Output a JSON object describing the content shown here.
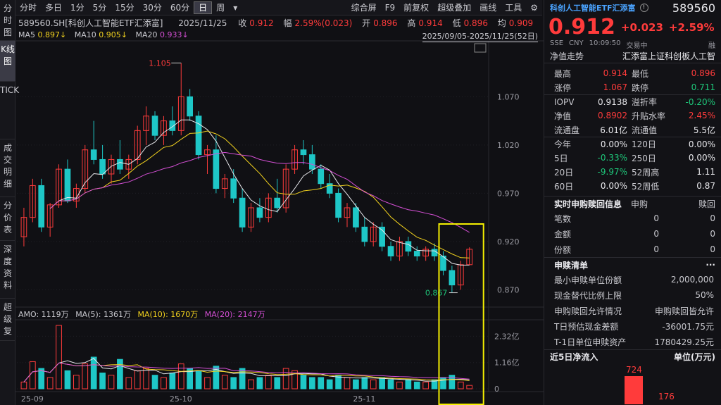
{
  "side_tabs": [
    "分时图",
    "K线图",
    "TICK",
    "成交明细",
    "分价表",
    "深度资料",
    "超级复"
  ],
  "toolbar": {
    "periods": [
      "分时",
      "多日",
      "1分",
      "5分",
      "15分",
      "30分",
      "60分",
      "日",
      "周"
    ],
    "active_period": "日",
    "more_icon": "chevron-down-icon",
    "right_items": [
      "综合屏",
      "F9",
      "前复权",
      "超级叠加",
      "画线",
      "工具"
    ],
    "settings_icon": "gear-icon"
  },
  "info": {
    "symbol": "589560.SH[科创人工智能ETF汇添富]",
    "date": "2025/11/25",
    "close_label": "收",
    "close": "0.912",
    "amp_label": "幅",
    "amp": "2.59%(0.023)",
    "open_label": "开",
    "open": "0.896",
    "high_label": "高",
    "high": "0.914",
    "low_label": "低",
    "low": "0.896",
    "avg_label": "均",
    "avg": "0.909"
  },
  "ma": {
    "ma5_label": "MA5",
    "ma5": "0.897↓",
    "ma10_label": "MA10",
    "ma10": "0.905↓",
    "ma20_label": "MA20",
    "ma20": "0.933↓",
    "range": "2025/09/05-2025/11/25(52日)"
  },
  "vol": {
    "amo": "AMO: 1119万",
    "ma5": "MA(5): 1361万",
    "ma10": "MA(10): 1670万",
    "ma20": "MA(20): 2147万"
  },
  "colors": {
    "up": "#ff3b3b",
    "down": "#1ec7c7",
    "ma5": "#e8e8ec",
    "ma10": "#f2d21e",
    "ma20": "#d44fd4",
    "highlight": "#f5f000"
  },
  "chart_data": {
    "type": "candlestick",
    "y_ticks": [
      "1.070",
      "1.020",
      "0.970",
      "0.920",
      "0.870"
    ],
    "ylim": [
      0.855,
      1.125
    ],
    "x_ticks": [
      "25-09",
      "25-10",
      "25-11"
    ],
    "annotations": {
      "max_label": "1.105",
      "min_label": "0.867"
    },
    "vol_ticks": [
      "2.32亿",
      "1.16亿",
      "0"
    ],
    "vol_max": 2.8,
    "candles": [
      [
        0.925,
        0.955,
        0.915,
        0.945
      ],
      [
        0.945,
        0.985,
        0.94,
        0.978
      ],
      [
        0.978,
        0.985,
        0.93,
        0.935
      ],
      [
        0.935,
        0.96,
        0.925,
        0.958
      ],
      [
        0.958,
        1.0,
        0.955,
        0.995
      ],
      [
        0.995,
        1.005,
        0.96,
        0.962
      ],
      [
        0.962,
        0.98,
        0.955,
        0.975
      ],
      [
        0.975,
        1.02,
        0.97,
        1.015
      ],
      [
        1.015,
        1.045,
        1.0,
        1.005
      ],
      [
        1.005,
        1.02,
        0.985,
        0.99
      ],
      [
        0.99,
        1.01,
        0.98,
        1.005
      ],
      [
        1.005,
        1.025,
        0.99,
        0.995
      ],
      [
        0.995,
        1.01,
        0.985,
        1.005
      ],
      [
        1.005,
        1.04,
        1.0,
        1.035
      ],
      [
        1.035,
        1.06,
        1.02,
        1.05
      ],
      [
        1.05,
        1.055,
        1.025,
        1.03
      ],
      [
        1.03,
        1.05,
        1.02,
        1.045
      ],
      [
        1.045,
        1.06,
        1.03,
        1.035
      ],
      [
        1.035,
        1.105,
        1.03,
        1.07
      ],
      [
        1.07,
        1.078,
        1.045,
        1.05
      ],
      [
        1.05,
        1.055,
        1.005,
        1.01
      ],
      [
        1.01,
        1.02,
        0.99,
        1.015
      ],
      [
        1.015,
        1.03,
        0.97,
        0.975
      ],
      [
        0.975,
        0.99,
        0.965,
        0.985
      ],
      [
        0.985,
        0.995,
        0.96,
        0.965
      ],
      [
        0.965,
        0.975,
        0.93,
        0.935
      ],
      [
        0.935,
        0.96,
        0.93,
        0.955
      ],
      [
        0.955,
        0.965,
        0.94,
        0.945
      ],
      [
        0.945,
        0.97,
        0.94,
        0.965
      ],
      [
        0.965,
        0.985,
        0.95,
        0.955
      ],
      [
        0.955,
        1.0,
        0.95,
        0.995
      ],
      [
        0.995,
        1.02,
        0.99,
        1.015
      ],
      [
        1.015,
        1.025,
        1.0,
        1.01
      ],
      [
        1.01,
        1.02,
        0.99,
        0.995
      ],
      [
        0.995,
        1.0,
        0.975,
        0.98
      ],
      [
        0.98,
        0.99,
        0.965,
        0.97
      ],
      [
        0.97,
        0.975,
        0.94,
        0.945
      ],
      [
        0.945,
        0.96,
        0.935,
        0.955
      ],
      [
        0.955,
        0.96,
        0.93,
        0.935
      ],
      [
        0.935,
        0.945,
        0.915,
        0.92
      ],
      [
        0.92,
        0.94,
        0.915,
        0.935
      ],
      [
        0.935,
        0.94,
        0.91,
        0.915
      ],
      [
        0.915,
        0.92,
        0.9,
        0.905
      ],
      [
        0.905,
        0.925,
        0.9,
        0.92
      ],
      [
        0.92,
        0.925,
        0.905,
        0.91
      ],
      [
        0.91,
        0.915,
        0.9,
        0.905
      ],
      [
        0.905,
        0.915,
        0.9,
        0.912
      ],
      [
        0.912,
        0.918,
        0.9,
        0.905
      ],
      [
        0.905,
        0.91,
        0.885,
        0.89
      ],
      [
        0.89,
        0.895,
        0.867,
        0.875
      ],
      [
        0.875,
        0.9,
        0.87,
        0.896
      ],
      [
        0.896,
        0.914,
        0.896,
        0.912
      ]
    ],
    "volumes": [
      0.3,
      1.2,
      0.9,
      0.5,
      2.8,
      0.8,
      0.6,
      1.1,
      1.4,
      0.7,
      0.6,
      1.3,
      0.5,
      0.8,
      0.9,
      0.6,
      0.5,
      0.7,
      1.1,
      0.9,
      0.8,
      0.5,
      1.0,
      0.6,
      0.5,
      0.9,
      0.4,
      0.5,
      0.6,
      0.5,
      0.9,
      0.8,
      0.6,
      0.5,
      0.5,
      0.4,
      0.6,
      0.5,
      0.4,
      0.5,
      0.4,
      0.5,
      0.4,
      0.3,
      0.4,
      0.3,
      0.3,
      0.4,
      0.5,
      0.6,
      0.3,
      0.15
    ]
  },
  "panel": {
    "name": "科创人工智能ETF汇添富",
    "info_icon": "info-icon",
    "code": "589560",
    "price": "0.912",
    "change": "+0.023",
    "pct": "+2.59%",
    "exchange": "SSE",
    "currency": "CNY",
    "time": "10:09:50",
    "status": "交易中",
    "tag": "融",
    "tab_active": "净值走势",
    "fund_name": "汇添富上证科创板人工智",
    "quote_rows": [
      {
        "k1": "最高",
        "v1": "0.914",
        "c1": "red",
        "k2": "最低",
        "v2": "0.896",
        "c2": "red"
      },
      {
        "k1": "涨停",
        "v1": "1.067",
        "c1": "red",
        "k2": "跌停",
        "v2": "0.711",
        "c2": "green"
      },
      {
        "k1": "IOPV",
        "v1": "0.9138",
        "c1": "white",
        "k2": "溢折率",
        "v2": "-0.20%",
        "c2": "green"
      },
      {
        "k1": "净值",
        "v1": "0.8902",
        "c1": "red",
        "k2": "升贴水率",
        "v2": "2.45%",
        "c2": "red"
      },
      {
        "k1": "流通盘",
        "v1": "6.01亿",
        "c1": "white",
        "k2": "流通值",
        "v2": "5.5亿",
        "c2": "white"
      },
      {
        "k1": "今年",
        "v1": "0.00%",
        "c1": "white",
        "k2": "120日",
        "v2": "0.00%",
        "c2": "white"
      },
      {
        "k1": "5日",
        "v1": "-0.33%",
        "c1": "green",
        "k2": "250日",
        "v2": "0.00%",
        "c2": "white"
      },
      {
        "k1": "20日",
        "v1": "-9.97%",
        "c1": "green",
        "k2": "52周高",
        "v2": "1.11",
        "c2": "white"
      },
      {
        "k1": "60日",
        "v1": "0.00%",
        "c1": "white",
        "k2": "52周低",
        "v2": "0.87",
        "c2": "white"
      }
    ],
    "sub_title": "实时申购赎回信息",
    "sub_col1": "申购",
    "sub_col2": "赎回",
    "sub_rows": [
      {
        "k": "笔数",
        "v1": "0",
        "v2": "0"
      },
      {
        "k": "金额",
        "v1": "0",
        "v2": "0"
      },
      {
        "k": "份额",
        "v1": "0",
        "v2": "0"
      }
    ],
    "list_title": "申赎清单",
    "list_rows": [
      {
        "k": "最小申赎单位份额",
        "v": "2,000,000"
      },
      {
        "k": "现金替代比例上限",
        "v": "50%"
      },
      {
        "k": "申购赎回允许情况",
        "v": "申购赎回皆允许"
      },
      {
        "k": "T日预估现金差额",
        "v": "-36001.75元"
      },
      {
        "k": "T-1日单位申赎资产",
        "v": "1780429.25元"
      }
    ],
    "flow_title": "近5日净流入",
    "flow_unit": "单位(万元)",
    "flow_values": [
      "724",
      "176"
    ]
  }
}
